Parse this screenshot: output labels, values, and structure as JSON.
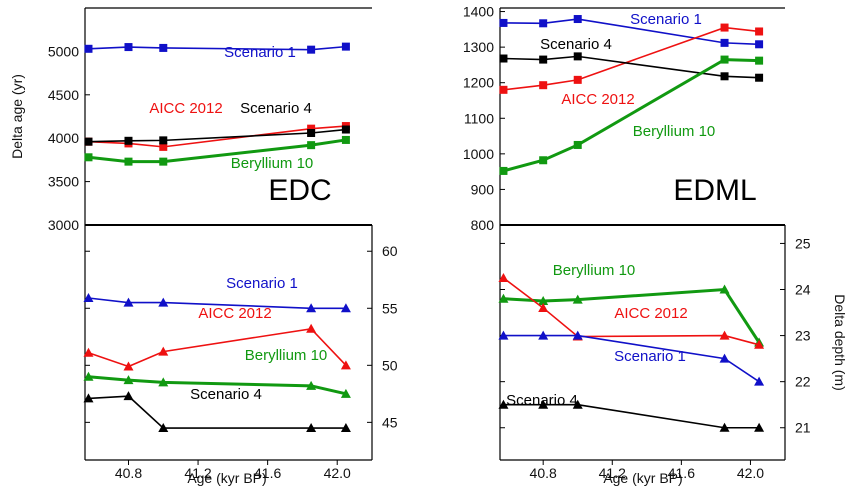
{
  "xlabel": "Age (kyr BP)",
  "colors": {
    "scenario1": "#1010c8",
    "aicc": "#ee1111",
    "scenario4": "#000000",
    "beryllium": "#119911"
  },
  "chart_data": [
    {
      "id": "edc-age",
      "type": "line",
      "panel_label": "EDC",
      "ylabel": "Delta age (yr)",
      "xlim": [
        40.55,
        42.2
      ],
      "ylim": [
        3000,
        5500
      ],
      "yticks": [
        3000,
        3500,
        4000,
        4500,
        5000
      ],
      "marker": "square",
      "series": [
        {
          "name": "Scenario 1",
          "color": "#1010c8",
          "x": [
            40.57,
            40.8,
            41.0,
            41.85,
            42.05
          ],
          "values": [
            5030,
            5050,
            5040,
            5020,
            5055
          ]
        },
        {
          "name": "AICC 2012",
          "color": "#ee1111",
          "x": [
            40.57,
            40.8,
            41.0,
            41.85,
            42.05
          ],
          "values": [
            3960,
            3940,
            3900,
            4110,
            4140
          ]
        },
        {
          "name": "Scenario 4",
          "color": "#000000",
          "x": [
            40.57,
            40.8,
            41.0,
            41.85,
            42.05
          ],
          "values": [
            3960,
            3970,
            3975,
            4060,
            4100
          ]
        },
        {
          "name": "Beryllium 10",
          "color": "#119911",
          "x": [
            40.57,
            40.8,
            41.0,
            41.85,
            42.05
          ],
          "values": [
            3780,
            3730,
            3730,
            3920,
            3980
          ]
        }
      ]
    },
    {
      "id": "edml-age",
      "type": "line",
      "panel_label": "EDML",
      "ylabel": "",
      "xlim": [
        40.55,
        42.2
      ],
      "ylim": [
        800,
        1410
      ],
      "yticks": [
        800,
        900,
        1000,
        1100,
        1200,
        1300,
        1400
      ],
      "marker": "square",
      "series": [
        {
          "name": "Scenario 1",
          "color": "#1010c8",
          "x": [
            40.57,
            40.8,
            41.0,
            41.85,
            42.05
          ],
          "values": [
            1368,
            1367,
            1379,
            1312,
            1308
          ]
        },
        {
          "name": "AICC 2012",
          "color": "#ee1111",
          "x": [
            40.57,
            40.8,
            41.0,
            41.85,
            42.05
          ],
          "values": [
            1180,
            1193,
            1208,
            1355,
            1344
          ]
        },
        {
          "name": "Scenario 4",
          "color": "#000000",
          "x": [
            40.57,
            40.8,
            41.0,
            41.85,
            42.05
          ],
          "values": [
            1268,
            1265,
            1274,
            1218,
            1214
          ]
        },
        {
          "name": "Beryllium 10",
          "color": "#119911",
          "x": [
            40.57,
            40.8,
            41.0,
            41.85,
            42.05
          ],
          "values": [
            952,
            982,
            1025,
            1265,
            1262
          ]
        }
      ]
    },
    {
      "id": "edc-depth",
      "type": "line",
      "panel_label": "",
      "ylabel": "",
      "xlim": [
        40.55,
        42.2
      ],
      "ylim": [
        41.7,
        62.3
      ],
      "yticks": [
        45,
        50,
        55,
        60
      ],
      "marker": "triangle",
      "series": [
        {
          "name": "Scenario 1",
          "color": "#1010c8",
          "x": [
            40.57,
            40.8,
            41.0,
            41.85,
            42.05
          ],
          "values": [
            55.9,
            55.5,
            55.5,
            55.0,
            55.0
          ]
        },
        {
          "name": "AICC 2012",
          "color": "#ee1111",
          "x": [
            40.57,
            40.8,
            41.0,
            41.85,
            42.05
          ],
          "values": [
            51.1,
            49.9,
            51.2,
            53.2,
            50.0
          ]
        },
        {
          "name": "Beryllium 10",
          "color": "#119911",
          "x": [
            40.57,
            40.8,
            41.0,
            41.85,
            42.05
          ],
          "values": [
            49.0,
            48.7,
            48.5,
            48.2,
            47.5
          ]
        },
        {
          "name": "Scenario 4",
          "color": "#000000",
          "x": [
            40.57,
            40.8,
            41.0,
            41.85,
            42.05
          ],
          "values": [
            47.1,
            47.3,
            44.5,
            44.5,
            44.5
          ]
        }
      ]
    },
    {
      "id": "edml-depth",
      "type": "line",
      "panel_label": "",
      "ylabel": "Delta depth (m)",
      "xlim": [
        40.55,
        42.2
      ],
      "ylim": [
        20.3,
        25.4
      ],
      "yticks": [
        21,
        22,
        23,
        24,
        25
      ],
      "marker": "triangle",
      "series": [
        {
          "name": "Beryllium 10",
          "color": "#119911",
          "x": [
            40.57,
            40.8,
            41.0,
            41.85,
            42.05
          ],
          "values": [
            23.8,
            23.75,
            23.78,
            24.0,
            22.85
          ]
        },
        {
          "name": "AICC 2012",
          "color": "#ee1111",
          "x": [
            40.57,
            40.8,
            41.0,
            41.85,
            42.05
          ],
          "values": [
            24.25,
            23.6,
            22.98,
            23.0,
            22.8
          ]
        },
        {
          "name": "Scenario 1",
          "color": "#1010c8",
          "x": [
            40.57,
            40.8,
            41.0,
            41.85,
            42.05
          ],
          "values": [
            23.0,
            23.0,
            23.0,
            22.5,
            22.0
          ]
        },
        {
          "name": "Scenario 4",
          "color": "#000000",
          "x": [
            40.57,
            40.8,
            41.0,
            41.85,
            42.05
          ],
          "values": [
            21.5,
            21.5,
            21.5,
            21.0,
            21.0
          ]
        }
      ]
    }
  ],
  "x_axis": {
    "ticks": [
      40.8,
      41.2,
      41.6,
      42.0
    ],
    "tick_labels": [
      "40.8",
      "41.2",
      "41.6",
      "42.0"
    ]
  }
}
